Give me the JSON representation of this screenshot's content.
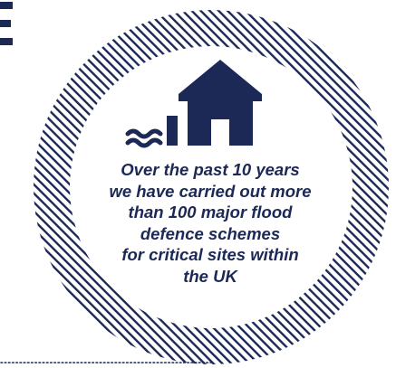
{
  "colors": {
    "navy": "#1c2856",
    "background": "#ffffff"
  },
  "icons": {
    "badge": "circular-hatched-ring",
    "house": "house-icon",
    "water": "water-waves-icon"
  },
  "partial_heading_letter": "E",
  "statement": {
    "lines": [
      "Over the past 10 years",
      "we have carried out more",
      "than 100 major flood",
      "defence schemes",
      "for critical sites within",
      "the UK"
    ]
  }
}
